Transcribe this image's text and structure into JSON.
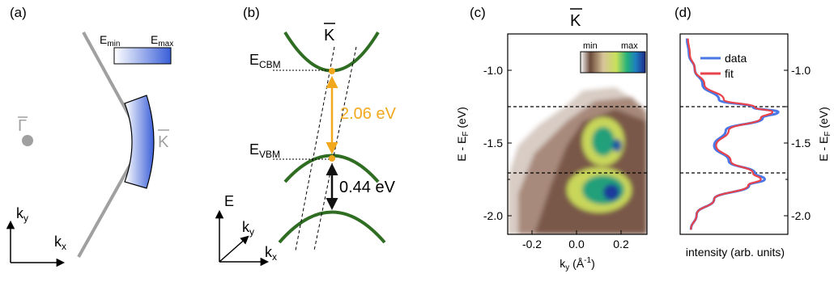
{
  "panels": {
    "a": {
      "label": "(a)",
      "gamma_label": "Γ",
      "k_label": "K",
      "colorbar_min": "E",
      "colorbar_min_sub": "min",
      "colorbar_max": "E",
      "colorbar_max_sub": "max",
      "axis_y": "k",
      "axis_y_sub": "y",
      "axis_x": "k",
      "axis_x_sub": "x",
      "colors": {
        "bz_edge": "#a0a0a0",
        "gradient_start": "#ffffff",
        "gradient_end": "#3a5fd8"
      }
    },
    "b": {
      "label": "(b)",
      "k_label": "K",
      "cbm_label": "E",
      "cbm_sub": "CBM",
      "vbm_label": "E",
      "vbm_sub": "VBM",
      "gap_label": "2.06 eV",
      "offset_label": "0.44 eV",
      "axis_e": "E",
      "axis_ky": "k",
      "axis_ky_sub": "y",
      "axis_kx": "k",
      "axis_kx_sub": "x",
      "colors": {
        "band": "#2f6e22",
        "gap_arrow": "#f2a81d",
        "offset_arrow": "#000000"
      }
    },
    "c": {
      "label": "(c)",
      "title": "K",
      "colorbar_min": "min",
      "colorbar_max": "max",
      "ylabel": "E - E",
      "ylabel_sub": "F",
      "ylabel_unit": " (eV)",
      "xlabel": "k",
      "xlabel_sub": "y",
      "xlabel_unit": " (Å",
      "xlabel_exp": "-1",
      "xlabel_close": ")",
      "xticks": [
        "-0.2",
        "0.0",
        "0.2"
      ],
      "yticks": [
        "-1.0",
        "-1.5",
        "-2.0"
      ],
      "dashed_energies": [
        -1.28,
        -1.72
      ]
    },
    "d": {
      "label": "(d)",
      "ylabel": "E - E",
      "ylabel_sub": "F",
      "ylabel_unit": " (eV)",
      "xlabel": "intensity (arb. units)",
      "yticks": [
        "-1.0",
        "-1.5",
        "-2.0"
      ],
      "legend": [
        {
          "name": "data",
          "color": "#4a78e6"
        },
        {
          "name": "fit",
          "color": "#e8424a"
        }
      ],
      "dashed_energies": [
        -1.28,
        -1.72
      ]
    }
  },
  "chart_data": {
    "type": "line",
    "title": "",
    "xlabel": "intensity (arb. units)",
    "ylabel": "E - EF (eV)",
    "ylim": [
      -2.08,
      -0.77
    ],
    "series": [
      {
        "name": "data",
        "y": [
          -0.8,
          -0.9,
          -1.0,
          -1.1,
          -1.2,
          -1.25,
          -1.28,
          -1.32,
          -1.4,
          -1.5,
          -1.6,
          -1.68,
          -1.72,
          -1.76,
          -1.85,
          -1.95,
          -2.05
        ],
        "x": [
          0.02,
          0.04,
          0.1,
          0.18,
          0.35,
          0.7,
          0.96,
          0.8,
          0.42,
          0.3,
          0.45,
          0.72,
          0.82,
          0.66,
          0.3,
          0.12,
          0.06
        ]
      },
      {
        "name": "fit",
        "y": [
          -0.8,
          -0.9,
          -1.0,
          -1.1,
          -1.2,
          -1.25,
          -1.28,
          -1.32,
          -1.4,
          -1.5,
          -1.6,
          -1.68,
          -1.72,
          -1.76,
          -1.85,
          -1.95,
          -2.05
        ],
        "x": [
          0.03,
          0.05,
          0.1,
          0.2,
          0.4,
          0.72,
          0.9,
          0.78,
          0.45,
          0.32,
          0.47,
          0.7,
          0.78,
          0.65,
          0.3,
          0.12,
          0.06
        ]
      }
    ]
  }
}
